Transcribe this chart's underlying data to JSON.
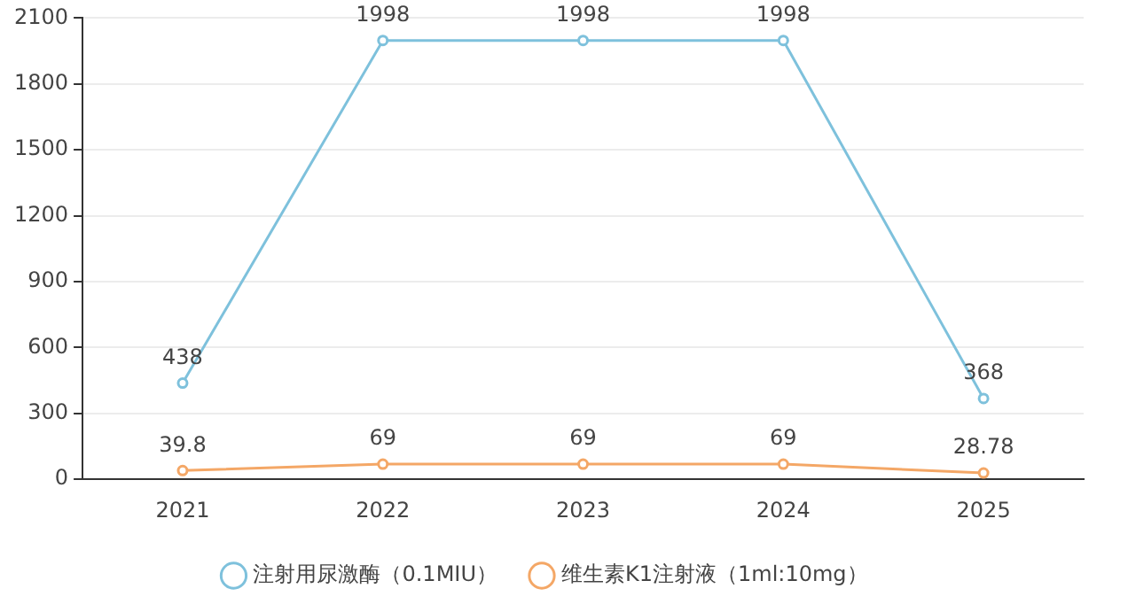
{
  "chart_data": {
    "type": "line",
    "categories": [
      "2021",
      "2022",
      "2023",
      "2024",
      "2025"
    ],
    "series": [
      {
        "name": "注射用尿激酶（0.1MIU）",
        "color": "#7ec1dc",
        "values": [
          438,
          1998,
          1998,
          1998,
          368
        ]
      },
      {
        "name": "维生素K1注射液（1ml:10mg）",
        "color": "#f4a766",
        "values": [
          39.8,
          69,
          69,
          69,
          28.78
        ]
      }
    ],
    "ylim": [
      0,
      2100
    ],
    "yticks": [
      0,
      300,
      600,
      900,
      1200,
      1500,
      1800,
      2100
    ],
    "grid": "y",
    "legend": "bottom",
    "marker": "circle",
    "data_labels": true
  }
}
